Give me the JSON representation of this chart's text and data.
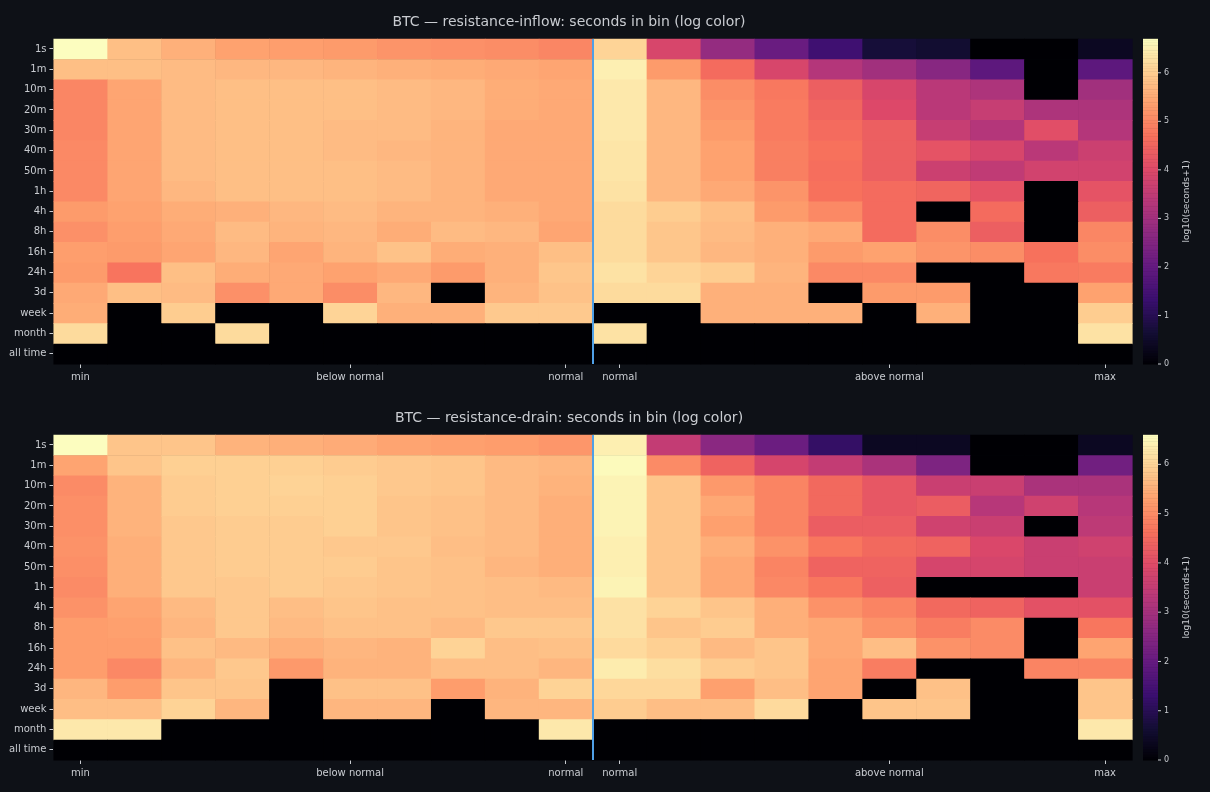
{
  "chart_data": [
    {
      "type": "heatmap",
      "title": "BTC — resistance-inflow: seconds in bin (log color)",
      "clabel": "log10(seconds+1)",
      "categories": [
        "min",
        null,
        null,
        null,
        null,
        "below normal",
        null,
        null,
        null,
        "normal",
        "normal",
        null,
        null,
        null,
        null,
        "above normal",
        null,
        null,
        null,
        "max"
      ],
      "y_categories": [
        "1s",
        "1m",
        "10m",
        "20m",
        "30m",
        "40m",
        "50m",
        "1h",
        "4h",
        "8h",
        "16h",
        "24h",
        "3d",
        "week",
        "month",
        "all time"
      ],
      "cells": [
        [
          6.7,
          5.8,
          5.6,
          5.4,
          5.35,
          5.3,
          5.2,
          5.15,
          5.1,
          5.0,
          6.1,
          3.9,
          2.8,
          2.1,
          1.4,
          0.7,
          0.6,
          0,
          0,
          0.4
        ],
        [
          5.8,
          5.8,
          5.75,
          5.7,
          5.7,
          5.65,
          5.6,
          5.55,
          5.5,
          5.45,
          6.5,
          5.3,
          4.6,
          3.9,
          3.3,
          3.0,
          2.6,
          1.9,
          0,
          1.9
        ],
        [
          5.0,
          5.45,
          5.75,
          5.8,
          5.8,
          5.8,
          5.75,
          5.7,
          5.55,
          5.5,
          6.4,
          5.7,
          5.1,
          4.8,
          4.4,
          3.9,
          3.4,
          3.2,
          0,
          3.0
        ],
        [
          5.0,
          5.45,
          5.75,
          5.8,
          5.8,
          5.8,
          5.75,
          5.7,
          5.55,
          5.5,
          6.4,
          5.7,
          5.2,
          4.85,
          4.5,
          4.0,
          3.4,
          3.6,
          3.2,
          3.2
        ],
        [
          5.0,
          5.45,
          5.75,
          5.8,
          5.8,
          5.75,
          5.75,
          5.65,
          5.5,
          5.5,
          6.4,
          5.7,
          5.3,
          4.85,
          4.6,
          4.4,
          3.6,
          3.3,
          4.1,
          3.3
        ],
        [
          5.05,
          5.45,
          5.75,
          5.8,
          5.8,
          5.75,
          5.7,
          5.65,
          5.5,
          5.5,
          6.35,
          5.7,
          5.4,
          4.9,
          4.7,
          4.4,
          4.2,
          3.9,
          3.4,
          3.7
        ],
        [
          5.05,
          5.45,
          5.75,
          5.8,
          5.8,
          5.8,
          5.75,
          5.65,
          5.5,
          5.5,
          6.35,
          5.7,
          5.4,
          4.9,
          4.65,
          4.4,
          3.7,
          3.5,
          3.8,
          3.8
        ],
        [
          5.05,
          5.45,
          5.7,
          5.8,
          5.8,
          5.8,
          5.75,
          5.65,
          5.5,
          5.5,
          6.3,
          5.7,
          5.5,
          5.2,
          4.7,
          4.6,
          4.5,
          4.2,
          0,
          4.2
        ],
        [
          5.3,
          5.4,
          5.55,
          5.6,
          5.7,
          5.75,
          5.65,
          5.65,
          5.6,
          5.5,
          6.2,
          6.0,
          5.8,
          5.3,
          5.05,
          4.6,
          0,
          4.6,
          0,
          4.4
        ],
        [
          5.15,
          5.35,
          5.5,
          5.75,
          5.65,
          5.7,
          5.55,
          5.75,
          5.7,
          5.45,
          6.2,
          5.9,
          5.75,
          5.6,
          5.5,
          4.6,
          5.1,
          4.4,
          0,
          5.0
        ],
        [
          5.35,
          5.3,
          5.45,
          5.7,
          5.45,
          5.65,
          5.85,
          5.55,
          5.6,
          5.8,
          6.2,
          5.9,
          5.7,
          5.6,
          5.3,
          5.4,
          5.2,
          5.1,
          4.7,
          5.1
        ],
        [
          5.3,
          4.75,
          5.8,
          5.55,
          5.5,
          5.4,
          5.5,
          5.3,
          5.6,
          5.9,
          6.3,
          6.1,
          6.0,
          5.65,
          5.05,
          5.05,
          0,
          0,
          4.8,
          4.85
        ],
        [
          5.5,
          5.8,
          5.75,
          5.15,
          5.5,
          5.1,
          5.7,
          0,
          5.65,
          5.85,
          6.2,
          6.2,
          5.6,
          5.6,
          0,
          5.3,
          5.3,
          0,
          0,
          5.4
        ],
        [
          5.55,
          0,
          6.0,
          0,
          0,
          6.1,
          5.6,
          5.6,
          5.95,
          5.95,
          0,
          0,
          5.6,
          5.6,
          5.6,
          0,
          5.6,
          0,
          0,
          6.0
        ],
        [
          6.2,
          0,
          0,
          6.2,
          0,
          0,
          0,
          0,
          0,
          0,
          6.3,
          0,
          0,
          0,
          0,
          0,
          0,
          0,
          0,
          6.3
        ],
        [
          0,
          0,
          0,
          0,
          0,
          0,
          0,
          0,
          0,
          0,
          0,
          0,
          0,
          0,
          0,
          0,
          0,
          0,
          0,
          0
        ]
      ],
      "clim": [
        0,
        6.7
      ],
      "cticks": [
        0,
        1,
        2,
        3,
        4,
        5,
        6
      ]
    },
    {
      "type": "heatmap",
      "title": "BTC — resistance-drain: seconds in bin (log color)",
      "clabel": "log10(seconds+1)",
      "categories": [
        "min",
        null,
        null,
        null,
        null,
        "below normal",
        null,
        null,
        null,
        "normal",
        "normal",
        null,
        null,
        null,
        null,
        "above normal",
        null,
        null,
        null,
        "max"
      ],
      "y_categories": [
        "1s",
        "1m",
        "10m",
        "20m",
        "30m",
        "40m",
        "50m",
        "1h",
        "4h",
        "8h",
        "16h",
        "24h",
        "3d",
        "week",
        "month",
        "all time"
      ],
      "cells": [
        [
          6.6,
          5.8,
          5.8,
          5.55,
          5.5,
          5.45,
          5.35,
          5.3,
          5.25,
          5.15,
          6.4,
          3.5,
          2.6,
          2.1,
          1.2,
          0.4,
          0.4,
          0,
          0,
          0.4
        ],
        [
          5.35,
          5.8,
          5.95,
          5.95,
          5.95,
          5.9,
          5.85,
          5.8,
          5.65,
          5.6,
          6.55,
          5.0,
          4.4,
          3.8,
          3.5,
          3.1,
          2.4,
          0,
          0,
          2.2
        ],
        [
          5.0,
          5.55,
          5.9,
          5.95,
          6.0,
          5.95,
          5.85,
          5.8,
          5.65,
          5.55,
          6.45,
          5.8,
          5.2,
          4.9,
          4.5,
          4.2,
          3.6,
          3.6,
          3.1,
          3.1
        ],
        [
          5.05,
          5.55,
          5.9,
          5.95,
          5.95,
          5.95,
          5.8,
          5.75,
          5.65,
          5.5,
          6.45,
          5.8,
          5.4,
          4.9,
          4.5,
          4.2,
          4.3,
          3.3,
          3.7,
          3.3
        ],
        [
          5.05,
          5.55,
          5.85,
          5.9,
          5.9,
          5.95,
          5.8,
          5.75,
          5.65,
          5.5,
          6.45,
          5.8,
          5.3,
          4.9,
          4.3,
          4.3,
          3.7,
          3.6,
          0,
          3.4
        ],
        [
          5.1,
          5.5,
          5.85,
          5.9,
          5.9,
          5.85,
          5.85,
          5.7,
          5.65,
          5.5,
          6.4,
          5.8,
          5.5,
          5.1,
          4.7,
          4.5,
          4.4,
          3.9,
          3.6,
          3.7
        ],
        [
          5.05,
          5.5,
          5.85,
          5.9,
          5.9,
          5.9,
          5.8,
          5.75,
          5.6,
          5.5,
          6.4,
          5.8,
          5.4,
          4.9,
          4.4,
          4.4,
          3.8,
          3.8,
          3.6,
          3.6
        ],
        [
          5.0,
          5.5,
          5.85,
          5.85,
          5.9,
          5.85,
          5.8,
          5.75,
          5.7,
          5.65,
          6.45,
          5.8,
          5.4,
          4.95,
          4.7,
          4.35,
          0,
          0,
          0,
          3.6
        ],
        [
          5.1,
          5.35,
          5.65,
          5.85,
          5.7,
          5.8,
          5.75,
          5.75,
          5.7,
          5.7,
          6.2,
          6.0,
          5.8,
          5.5,
          5.1,
          4.9,
          4.5,
          4.4,
          4.1,
          4.1
        ],
        [
          5.25,
          5.3,
          5.6,
          5.85,
          5.65,
          5.75,
          5.75,
          5.65,
          5.85,
          5.85,
          6.2,
          5.8,
          5.9,
          5.5,
          5.4,
          5.1,
          4.8,
          5.0,
          0,
          4.7
        ],
        [
          5.25,
          5.25,
          5.75,
          5.65,
          5.5,
          5.6,
          5.55,
          6.0,
          5.7,
          5.75,
          6.1,
          5.95,
          5.65,
          5.8,
          5.4,
          5.7,
          5.1,
          5.0,
          0,
          5.35
        ],
        [
          5.25,
          4.95,
          5.6,
          5.85,
          5.2,
          5.55,
          5.55,
          5.7,
          5.7,
          5.6,
          6.35,
          6.15,
          5.9,
          5.8,
          5.35,
          4.8,
          0,
          0,
          4.9,
          4.9
        ],
        [
          5.6,
          5.25,
          5.8,
          5.8,
          0,
          5.75,
          5.75,
          5.25,
          5.55,
          6.0,
          6.05,
          6.05,
          5.3,
          5.7,
          5.35,
          0,
          5.75,
          0,
          0,
          5.8
        ],
        [
          5.7,
          5.7,
          6.0,
          5.6,
          0,
          5.6,
          5.6,
          0,
          5.6,
          5.6,
          5.9,
          5.7,
          5.7,
          6.1,
          0,
          5.8,
          5.8,
          0,
          0,
          5.8
        ],
        [
          6.3,
          6.3,
          0,
          0,
          0,
          0,
          0,
          0,
          0,
          6.3,
          0,
          0,
          0,
          0,
          0,
          0,
          0,
          0,
          0,
          6.3
        ],
        [
          0,
          0,
          0,
          0,
          0,
          0,
          0,
          0,
          0,
          0,
          0,
          0,
          0,
          0,
          0,
          0,
          0,
          0,
          0,
          0
        ]
      ],
      "clim": [
        0,
        6.6
      ],
      "cticks": [
        0,
        1,
        2,
        3,
        4,
        5,
        6
      ]
    }
  ]
}
